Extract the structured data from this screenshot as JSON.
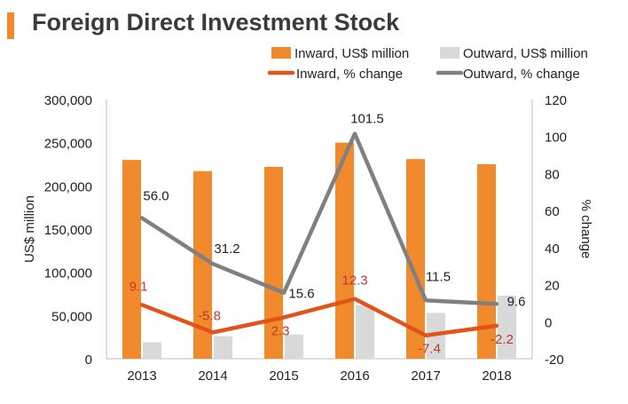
{
  "title": "Foreign Direct Investment Stock",
  "chart_data": {
    "type": "bar",
    "categories": [
      "2013",
      "2014",
      "2015",
      "2016",
      "2017",
      "2018"
    ],
    "bar_series": [
      {
        "name": "Inward, US$ million",
        "values": [
          230000,
          217000,
          222000,
          250000,
          231000,
          225000
        ],
        "color": "#f08a2c"
      },
      {
        "name": "Outward, US$ million",
        "values": [
          19000,
          26000,
          28000,
          62000,
          53000,
          73000
        ],
        "color": "#d9d9d9"
      }
    ],
    "line_series": [
      {
        "name": "Inward, % change",
        "values": [
          9.1,
          -5.8,
          2.3,
          12.3,
          -7.4,
          -2.2
        ],
        "labels": [
          "9.1",
          "-5.8",
          "2.3",
          "12.3",
          "-7.4",
          "-2.2"
        ],
        "color": "#e0531b",
        "label_color": "#c0392b"
      },
      {
        "name": "Outward, % change",
        "values": [
          56.0,
          31.2,
          15.6,
          101.5,
          11.5,
          9.6
        ],
        "labels": [
          "56.0",
          "31.2",
          "15.6",
          "101.5",
          "11.5",
          "9.6"
        ],
        "color": "#808080",
        "label_color": "#222222"
      }
    ],
    "ylabel": "US$ million",
    "y2label": "% change",
    "ylim": [
      0,
      300000
    ],
    "y2lim": [
      -20,
      120
    ],
    "y_ticks": [
      "0",
      "50,000",
      "100,000",
      "150,000",
      "200,000",
      "250,000",
      "300,000"
    ],
    "y2_ticks": [
      "-20",
      "0",
      "20",
      "40",
      "60",
      "80",
      "100",
      "120"
    ],
    "legend_position": "top-right"
  }
}
